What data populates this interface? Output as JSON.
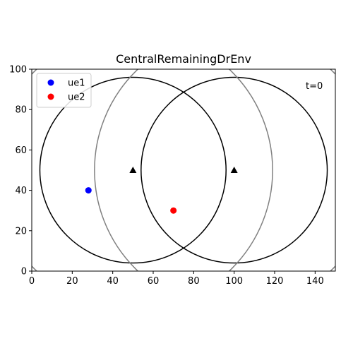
{
  "chart_data": {
    "type": "scatter",
    "title": "CentralRemainingDrEnv",
    "xlabel": "",
    "ylabel": "",
    "xlim": [
      0,
      150
    ],
    "ylim": [
      0,
      100
    ],
    "x_ticks": [
      0,
      20,
      40,
      60,
      80,
      100,
      120,
      140
    ],
    "y_ticks": [
      0,
      20,
      40,
      60,
      80,
      100
    ],
    "grid": false,
    "time_label": "t=0",
    "legend": {
      "placement": "top-left",
      "entries": [
        {
          "label": "ue1",
          "color": "#0000ff"
        },
        {
          "label": "ue2",
          "color": "#ff0000"
        }
      ]
    },
    "series": [
      {
        "name": "ue1",
        "color": "#0000ff",
        "marker": "circle",
        "points": [
          {
            "x": 28,
            "y": 40
          }
        ]
      },
      {
        "name": "ue2",
        "color": "#ff0000",
        "marker": "circle",
        "points": [
          {
            "x": 70,
            "y": 30
          }
        ]
      }
    ],
    "base_stations": [
      {
        "x": 50,
        "y": 50
      },
      {
        "x": 100,
        "y": 50
      }
    ],
    "coverage_circles": [
      {
        "cx": 50,
        "cy": 50,
        "r": 46,
        "color": "#000000"
      },
      {
        "cx": 100,
        "cy": 50,
        "r": 46,
        "color": "#000000"
      },
      {
        "cx": 50,
        "cy": 50,
        "r": 69,
        "color": "#808080"
      },
      {
        "cx": 100,
        "cy": 50,
        "r": 69,
        "color": "#808080"
      }
    ]
  }
}
